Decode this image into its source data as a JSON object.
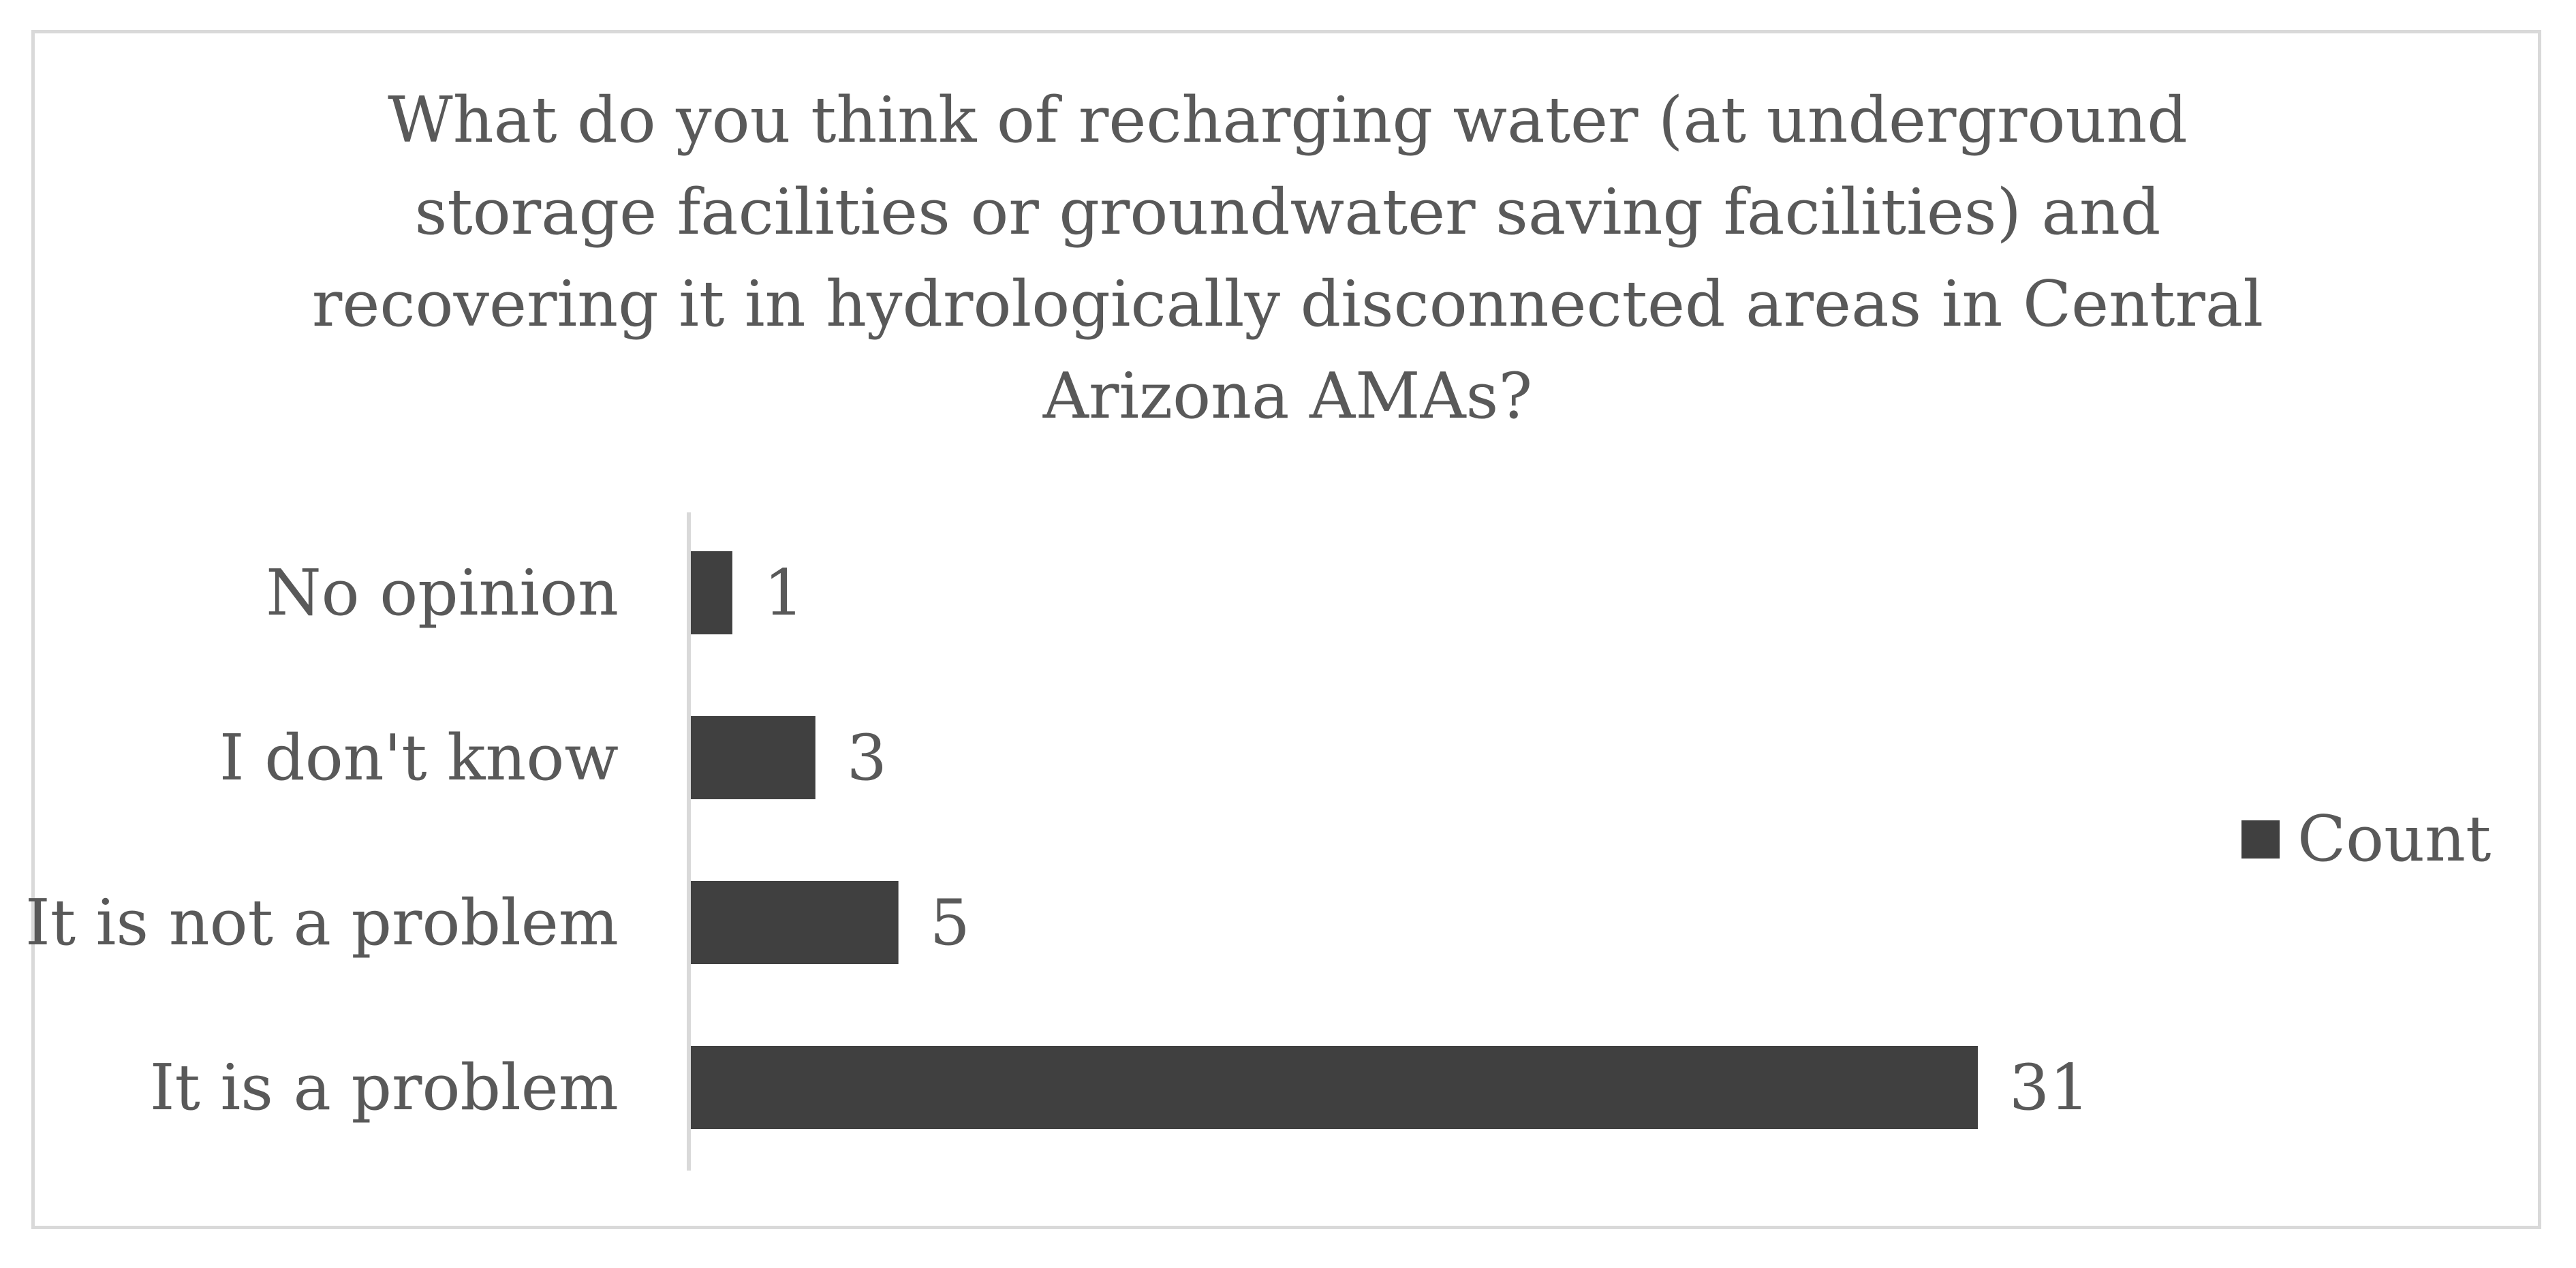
{
  "chart_data": {
    "type": "bar",
    "orientation": "horizontal",
    "title_lines": [
      "What do you think of recharging water (at underground",
      "storage facilities or groundwater saving facilities) and",
      "recovering it in hydrologically disconnected areas in Central",
      "Arizona AMAs?"
    ],
    "categories": [
      "No opinion",
      "I don't know",
      "It is not a problem",
      "It is a problem"
    ],
    "series": [
      {
        "name": "Count",
        "values": [
          1,
          3,
          5,
          31
        ],
        "color": "#404040"
      }
    ],
    "xlim": [
      0,
      31
    ],
    "grid": false,
    "legend_position": "right",
    "data_labels": true
  },
  "colors": {
    "bar": "#404040",
    "text": "#595959",
    "axis": "#d9d9d9",
    "border": "#d9d9d9"
  }
}
